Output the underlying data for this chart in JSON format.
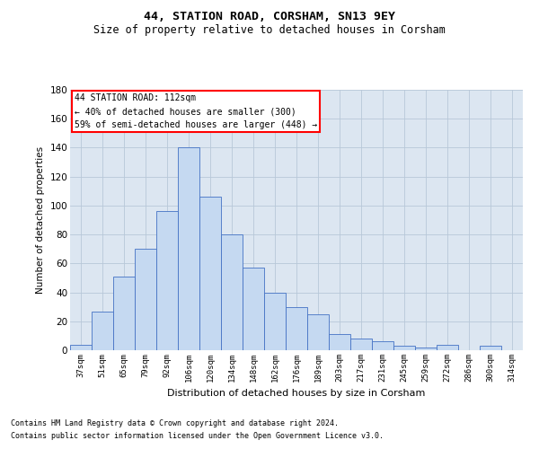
{
  "title": "44, STATION ROAD, CORSHAM, SN13 9EY",
  "subtitle": "Size of property relative to detached houses in Corsham",
  "xlabel": "Distribution of detached houses by size in Corsham",
  "ylabel": "Number of detached properties",
  "categories": [
    "37sqm",
    "51sqm",
    "65sqm",
    "79sqm",
    "92sqm",
    "106sqm",
    "120sqm",
    "134sqm",
    "148sqm",
    "162sqm",
    "176sqm",
    "189sqm",
    "203sqm",
    "217sqm",
    "231sqm",
    "245sqm",
    "259sqm",
    "272sqm",
    "286sqm",
    "300sqm",
    "314sqm"
  ],
  "values": [
    4,
    27,
    51,
    70,
    96,
    140,
    106,
    80,
    57,
    40,
    30,
    25,
    11,
    8,
    6,
    3,
    2,
    4,
    0,
    3,
    0
  ],
  "bar_color": "#c5d9f1",
  "bar_edge_color": "#4472c4",
  "ax_facecolor": "#dce6f1",
  "background_color": "#ffffff",
  "grid_color": "#b8c8d8",
  "ylim": [
    0,
    180
  ],
  "yticks": [
    0,
    20,
    40,
    60,
    80,
    100,
    120,
    140,
    160,
    180
  ],
  "annotation_text": "44 STATION ROAD: 112sqm\n← 40% of detached houses are smaller (300)\n59% of semi-detached houses are larger (448) →",
  "footer_line1": "Contains HM Land Registry data © Crown copyright and database right 2024.",
  "footer_line2": "Contains public sector information licensed under the Open Government Licence v3.0."
}
